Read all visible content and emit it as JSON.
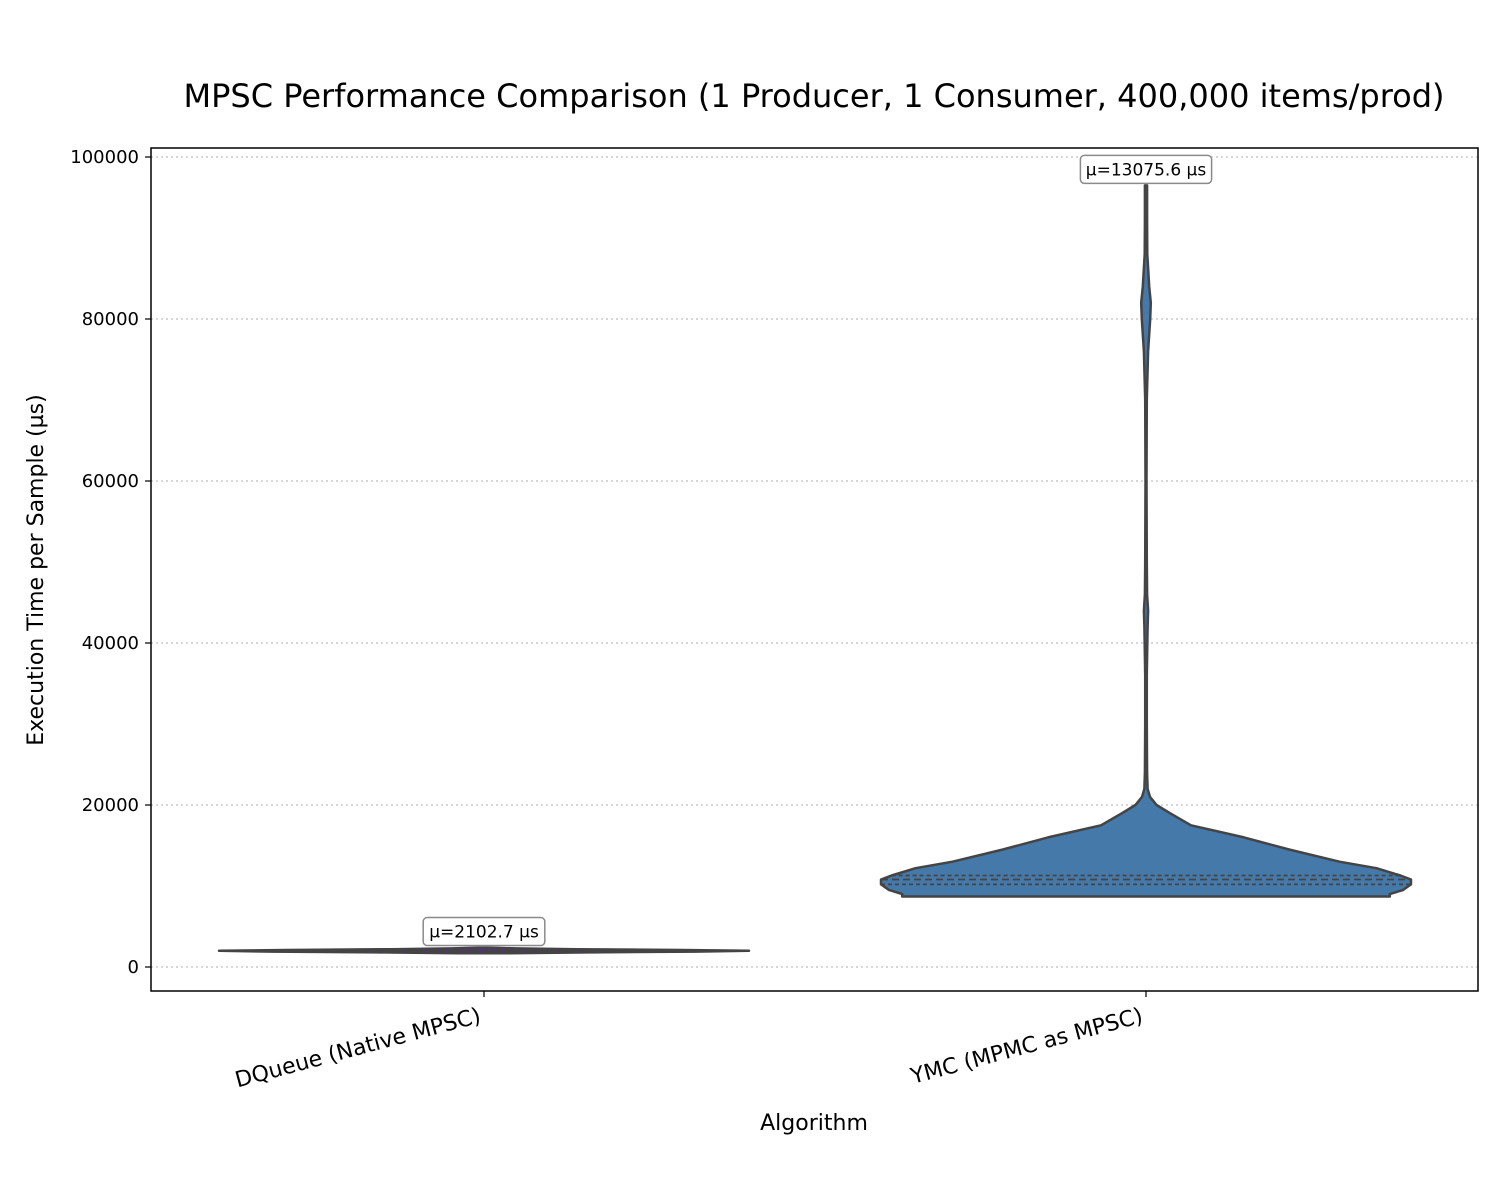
{
  "chart_data": {
    "type": "violin",
    "title": "MPSC Performance Comparison (1 Producer, 1 Consumer, 400,000 items/prod)",
    "xlabel": "Algorithm",
    "ylabel": "Execution Time per Sample (µs)",
    "ylim": [
      -3000,
      100500
    ],
    "yticks": [
      0,
      20000,
      40000,
      60000,
      80000,
      100000
    ],
    "grid": "horizontal dotted",
    "categories": [
      "DQueue (Native MPSC)",
      "YMC (MPMC as MPSC)"
    ],
    "series": [
      {
        "category": "DQueue (Native MPSC)",
        "color": "#5a2d8c",
        "mean_label": "µ=2102.7 µs",
        "mean": 2102.7,
        "min": 1700,
        "max": 2400,
        "median": 2000,
        "q1": 1950,
        "q3": 2050,
        "density_profile": [
          [
            1700,
            0.1
          ],
          [
            1800,
            0.4
          ],
          [
            1900,
            0.8
          ],
          [
            2000,
            1.0
          ],
          [
            2100,
            0.75
          ],
          [
            2200,
            0.35
          ],
          [
            2300,
            0.12
          ],
          [
            2400,
            0.02
          ]
        ]
      },
      {
        "category": "YMC (MPMC as MPSC)",
        "color": "#4479aa",
        "mean_label": "µ=13075.6 µs",
        "mean": 13075.6,
        "min": 8700,
        "max": 96500,
        "median": 10800,
        "q1": 10200,
        "q3": 11300,
        "density_profile": [
          [
            8700,
            0.92
          ],
          [
            9000,
            0.92
          ],
          [
            9500,
            0.97
          ],
          [
            10200,
            1.0
          ],
          [
            10800,
            1.0
          ],
          [
            11300,
            0.96
          ],
          [
            12200,
            0.87
          ],
          [
            13000,
            0.73
          ],
          [
            14500,
            0.54
          ],
          [
            16000,
            0.37
          ],
          [
            17500,
            0.17
          ],
          [
            19000,
            0.09
          ],
          [
            20000,
            0.04
          ],
          [
            21000,
            0.015
          ],
          [
            22000,
            0.006
          ],
          [
            24000,
            0.004
          ],
          [
            30000,
            0.003
          ],
          [
            36000,
            0.003
          ],
          [
            42000,
            0.006
          ],
          [
            44000,
            0.008
          ],
          [
            46000,
            0.004
          ],
          [
            50000,
            0.003
          ],
          [
            60000,
            0.002
          ],
          [
            70000,
            0.003
          ],
          [
            76000,
            0.008
          ],
          [
            80000,
            0.016
          ],
          [
            82000,
            0.018
          ],
          [
            84000,
            0.012
          ],
          [
            88000,
            0.005
          ],
          [
            92000,
            0.004
          ],
          [
            96500,
            0.004
          ]
        ]
      }
    ]
  }
}
